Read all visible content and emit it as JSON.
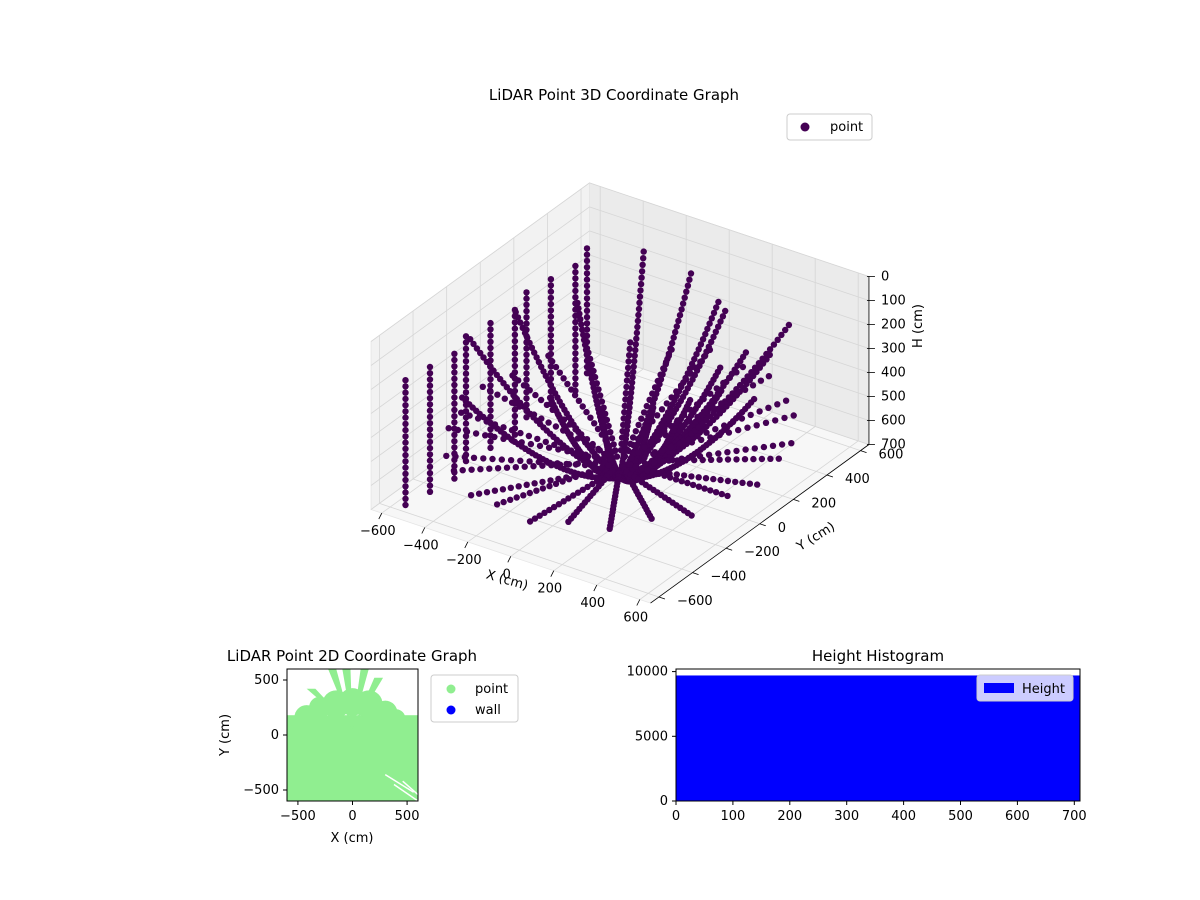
{
  "colors": {
    "point_3d": "#440154",
    "point_2d": "#90ee90",
    "wall": "#0000ff",
    "histogram": "#0000ff",
    "pane": "#f2f2f2",
    "grid": "#d6d6d6"
  },
  "chart_data": [
    {
      "type": "scatter",
      "projection": "3d",
      "title": "LiDAR Point 3D Coordinate Graph",
      "xlabel": "X (cm)",
      "ylabel": "Y (cm)",
      "zlabel": "H (cm)",
      "xlim": [
        -650,
        650
      ],
      "ylim": [
        -650,
        650
      ],
      "zlim": [
        0,
        700
      ],
      "z_inverted": true,
      "xticks": [
        "−600",
        "−400",
        "−200",
        "0",
        "200",
        "400",
        "600"
      ],
      "yticks": [
        "−600",
        "−400",
        "−200",
        "0",
        "200",
        "400",
        "600"
      ],
      "zticks": [
        "0",
        "100",
        "200",
        "300",
        "400",
        "500",
        "600",
        "700"
      ],
      "grid": true,
      "legend": {
        "position": "top-right",
        "entries": [
          "point"
        ]
      },
      "series": [
        {
          "name": "point",
          "pattern": "radial rings of LiDAR returns curving upward from the sensor at the origin",
          "ring_angles_deg": [
            -35,
            -20,
            -10,
            0,
            10,
            20,
            30,
            45,
            60,
            80,
            100,
            120,
            150,
            180,
            210,
            240,
            270,
            300,
            330
          ],
          "max_range": 650
        }
      ]
    },
    {
      "type": "scatter",
      "title": "LiDAR Point 2D Coordinate Graph",
      "xlabel": "X (cm)",
      "ylabel": "Y (cm)",
      "xlim": [
        -600,
        600
      ],
      "ylim": [
        -600,
        600
      ],
      "xticks": [
        -500,
        0,
        500
      ],
      "yticks": [
        -500,
        0,
        500
      ],
      "legend": {
        "position": "outside-right",
        "entries": [
          "point",
          "wall"
        ]
      },
      "series": [
        {
          "name": "point",
          "region_note": "dense fill covering most of the plane, with spokes reaching y≈600 near x≈-200..200"
        },
        {
          "name": "wall",
          "values": []
        }
      ]
    },
    {
      "type": "bar",
      "title": "Height Histogram",
      "xlim": [
        0,
        710
      ],
      "ylim": [
        0,
        10200
      ],
      "xticks": [
        0,
        100,
        200,
        300,
        400,
        500,
        600,
        700
      ],
      "yticks": [
        0,
        5000,
        10000
      ],
      "legend": {
        "position": "top-right",
        "entries": [
          "Height"
        ]
      },
      "series": [
        {
          "name": "Height",
          "bins": [
            0,
            710
          ],
          "values": [
            9700
          ]
        }
      ]
    }
  ]
}
